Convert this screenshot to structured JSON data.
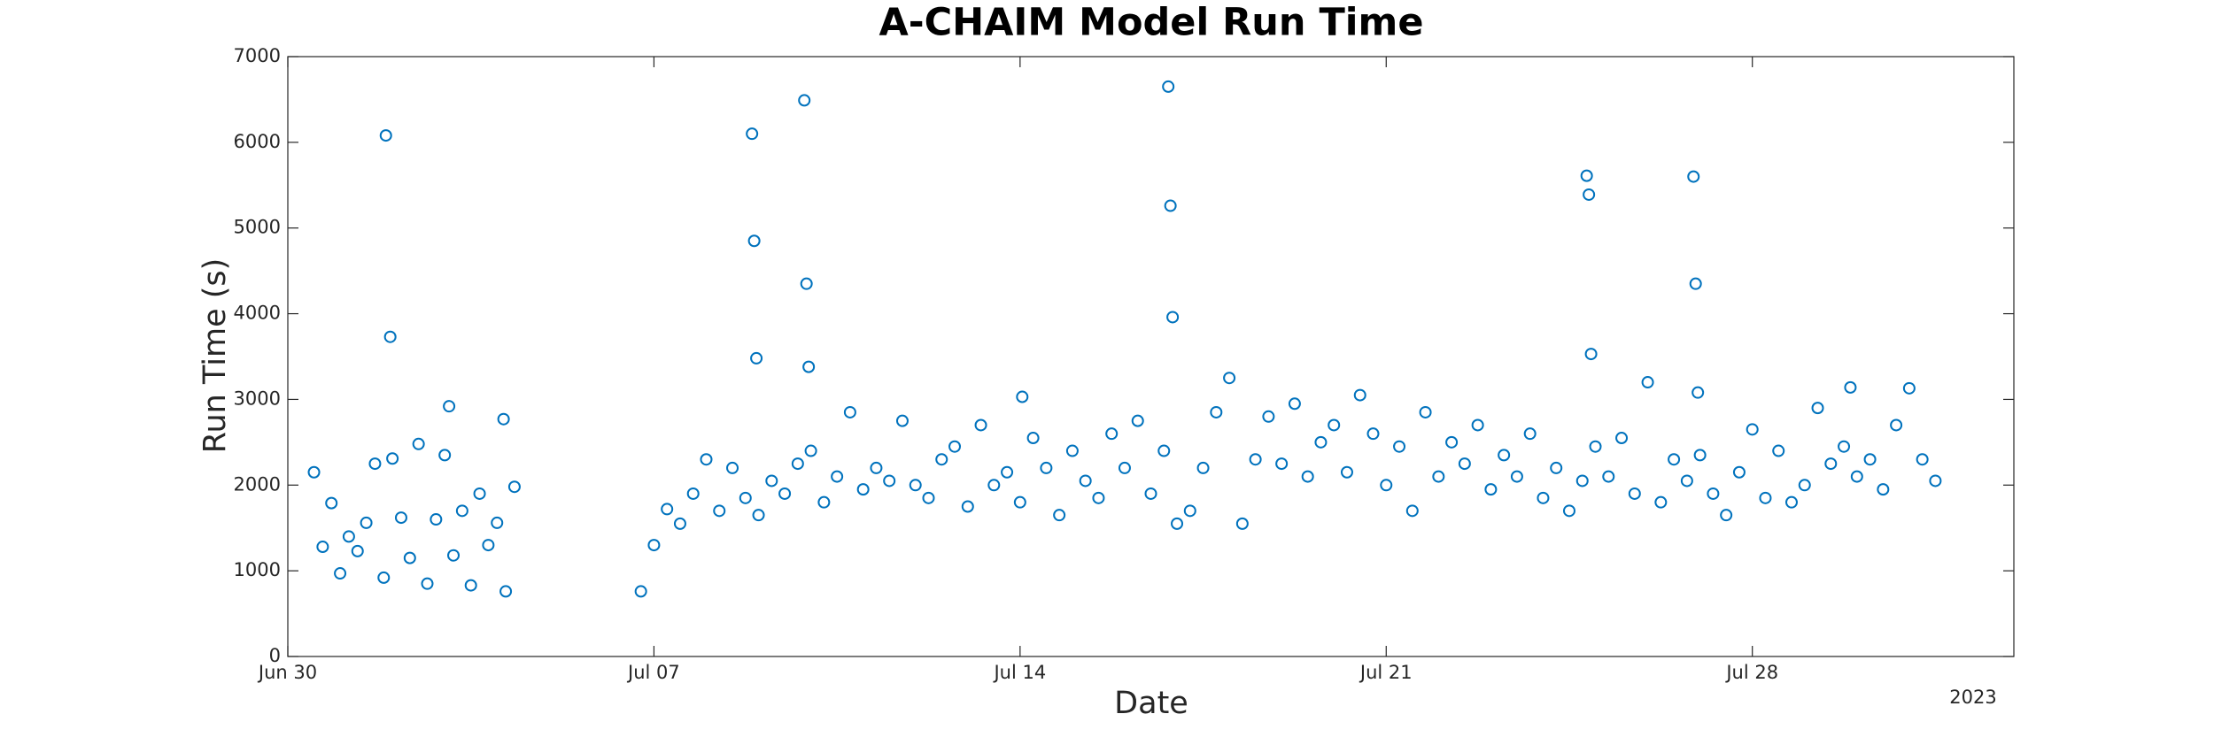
{
  "chart_data": {
    "type": "scatter",
    "title": "A-CHAIM Model Run Time",
    "x_label": "Date",
    "y_label": "Run Time (s)",
    "x_year_label": "2023",
    "color": "#0072bd",
    "grid": false,
    "xlim": [
      "2023-06-30",
      "2023-08-02"
    ],
    "xticks": [
      {
        "value": "2023-06-30",
        "label": "Jun 30"
      },
      {
        "value": "2023-07-07",
        "label": "Jul 07"
      },
      {
        "value": "2023-07-14",
        "label": "Jul 14"
      },
      {
        "value": "2023-07-21",
        "label": "Jul 21"
      },
      {
        "value": "2023-07-28",
        "label": "Jul 28"
      }
    ],
    "ylim": [
      0,
      7000
    ],
    "yticks": [
      0,
      1000,
      2000,
      3000,
      4000,
      5000,
      6000,
      7000
    ],
    "x": [
      "2023-06-30 12:00",
      "2023-06-30 16:00",
      "2023-06-30 20:00",
      "2023-07-01 00:00",
      "2023-07-01 04:00",
      "2023-07-01 08:00",
      "2023-07-01 12:00",
      "2023-07-01 16:00",
      "2023-07-01 20:00",
      "2023-07-01 21:00",
      "2023-07-01 23:00",
      "2023-07-02 00:00",
      "2023-07-02 04:00",
      "2023-07-02 08:00",
      "2023-07-02 12:00",
      "2023-07-02 16:00",
      "2023-07-02 20:00",
      "2023-07-03 00:00",
      "2023-07-03 02:00",
      "2023-07-03 04:00",
      "2023-07-03 08:00",
      "2023-07-03 12:00",
      "2023-07-03 16:00",
      "2023-07-03 20:00",
      "2023-07-04 00:00",
      "2023-07-04 03:00",
      "2023-07-04 04:00",
      "2023-07-04 08:00",
      "2023-07-06 18:00",
      "2023-07-07 00:00",
      "2023-07-07 06:00",
      "2023-07-07 12:00",
      "2023-07-07 18:00",
      "2023-07-08 00:00",
      "2023-07-08 06:00",
      "2023-07-08 12:00",
      "2023-07-08 18:00",
      "2023-07-08 21:00",
      "2023-07-08 22:00",
      "2023-07-08 23:00",
      "2023-07-09 00:00",
      "2023-07-09 06:00",
      "2023-07-09 12:00",
      "2023-07-09 18:00",
      "2023-07-09 21:00",
      "2023-07-09 22:00",
      "2023-07-09 23:00",
      "2023-07-10 00:00",
      "2023-07-10 06:00",
      "2023-07-10 12:00",
      "2023-07-10 18:00",
      "2023-07-11 00:00",
      "2023-07-11 06:00",
      "2023-07-11 12:00",
      "2023-07-11 18:00",
      "2023-07-12 00:00",
      "2023-07-12 06:00",
      "2023-07-12 12:00",
      "2023-07-12 18:00",
      "2023-07-13 00:00",
      "2023-07-13 06:00",
      "2023-07-13 12:00",
      "2023-07-13 18:00",
      "2023-07-14 00:00",
      "2023-07-14 01:00",
      "2023-07-14 06:00",
      "2023-07-14 12:00",
      "2023-07-14 18:00",
      "2023-07-15 00:00",
      "2023-07-15 06:00",
      "2023-07-15 12:00",
      "2023-07-15 18:00",
      "2023-07-16 00:00",
      "2023-07-16 06:00",
      "2023-07-16 12:00",
      "2023-07-16 18:00",
      "2023-07-16 20:00",
      "2023-07-16 21:00",
      "2023-07-16 22:00",
      "2023-07-17 00:00",
      "2023-07-17 06:00",
      "2023-07-17 12:00",
      "2023-07-17 18:00",
      "2023-07-18 00:00",
      "2023-07-18 06:00",
      "2023-07-18 12:00",
      "2023-07-18 18:00",
      "2023-07-19 00:00",
      "2023-07-19 06:00",
      "2023-07-19 12:00",
      "2023-07-19 18:00",
      "2023-07-20 00:00",
      "2023-07-20 06:00",
      "2023-07-20 12:00",
      "2023-07-20 18:00",
      "2023-07-21 00:00",
      "2023-07-21 06:00",
      "2023-07-21 12:00",
      "2023-07-21 18:00",
      "2023-07-22 00:00",
      "2023-07-22 06:00",
      "2023-07-22 12:00",
      "2023-07-22 18:00",
      "2023-07-23 00:00",
      "2023-07-23 06:00",
      "2023-07-23 12:00",
      "2023-07-23 18:00",
      "2023-07-24 00:00",
      "2023-07-24 06:00",
      "2023-07-24 12:00",
      "2023-07-24 18:00",
      "2023-07-24 20:00",
      "2023-07-24 21:00",
      "2023-07-24 22:00",
      "2023-07-25 00:00",
      "2023-07-25 06:00",
      "2023-07-25 12:00",
      "2023-07-25 18:00",
      "2023-07-26 00:00",
      "2023-07-26 06:00",
      "2023-07-26 12:00",
      "2023-07-26 18:00",
      "2023-07-26 21:00",
      "2023-07-26 22:00",
      "2023-07-26 23:00",
      "2023-07-27 00:00",
      "2023-07-27 06:00",
      "2023-07-27 12:00",
      "2023-07-27 18:00",
      "2023-07-28 00:00",
      "2023-07-28 06:00",
      "2023-07-28 12:00",
      "2023-07-28 18:00",
      "2023-07-29 00:00",
      "2023-07-29 06:00",
      "2023-07-29 12:00",
      "2023-07-29 18:00",
      "2023-07-29 21:00",
      "2023-07-30 00:00",
      "2023-07-30 06:00",
      "2023-07-30 12:00",
      "2023-07-30 18:00",
      "2023-07-31 00:00",
      "2023-07-31 06:00",
      "2023-07-31 12:00"
    ],
    "values": [
      2150,
      1280,
      1790,
      970,
      1400,
      1230,
      1560,
      2250,
      920,
      6080,
      3730,
      2310,
      1620,
      1150,
      2480,
      850,
      1600,
      2350,
      2920,
      1180,
      1700,
      830,
      1900,
      1300,
      1560,
      2770,
      760,
      1980,
      760,
      1300,
      1720,
      1550,
      1900,
      2300,
      1700,
      2200,
      1850,
      6100,
      4850,
      3480,
      1650,
      2050,
      1900,
      2250,
      6490,
      4350,
      3380,
      2400,
      1800,
      2100,
      2850,
      1950,
      2200,
      2050,
      2750,
      2000,
      1850,
      2300,
      2450,
      1750,
      2700,
      2000,
      2150,
      1800,
      3030,
      2550,
      2200,
      1650,
      2400,
      2050,
      1850,
      2600,
      2200,
      2750,
      1900,
      2400,
      6650,
      5260,
      3960,
      1550,
      1700,
      2200,
      2850,
      3250,
      1550,
      2300,
      2800,
      2250,
      2950,
      2100,
      2500,
      2700,
      2150,
      3050,
      2600,
      2000,
      2450,
      1700,
      2850,
      2100,
      2500,
      2250,
      2700,
      1950,
      2350,
      2100,
      2600,
      1850,
      2200,
      1700,
      2050,
      5610,
      5390,
      3530,
      2450,
      2100,
      2550,
      1900,
      3200,
      1800,
      2300,
      2050,
      5600,
      4350,
      3080,
      2350,
      1900,
      1650,
      2150,
      2650,
      1850,
      2400,
      1800,
      2000,
      2900,
      2250,
      2450,
      3140,
      2100,
      2300,
      1950,
      2700,
      3130,
      2300,
      2050
    ]
  }
}
